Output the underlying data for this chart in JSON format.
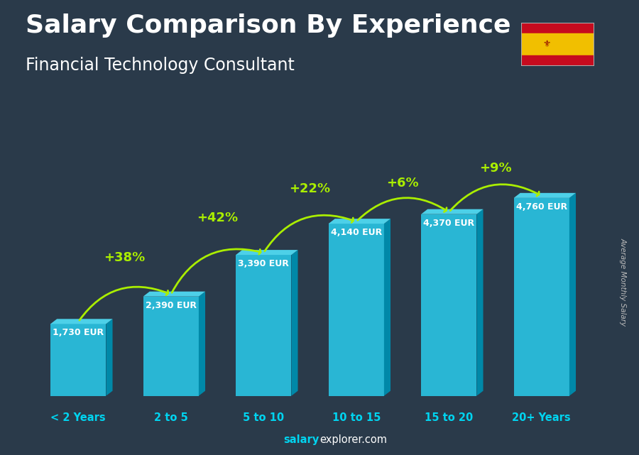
{
  "title": "Salary Comparison By Experience",
  "subtitle": "Financial Technology Consultant",
  "categories": [
    "< 2 Years",
    "2 to 5",
    "5 to 10",
    "10 to 15",
    "15 to 20",
    "20+ Years"
  ],
  "values": [
    1730,
    2390,
    3390,
    4140,
    4370,
    4760
  ],
  "labels": [
    "1,730 EUR",
    "2,390 EUR",
    "3,390 EUR",
    "4,140 EUR",
    "4,370 EUR",
    "4,760 EUR"
  ],
  "pct_changes": [
    "+38%",
    "+42%",
    "+22%",
    "+6%",
    "+9%"
  ],
  "color_front": "#29b6d4",
  "color_top": "#4dd0e8",
  "color_side": "#0088a8",
  "bg_color": "#2a3a4a",
  "title_color": "#ffffff",
  "subtitle_color": "#ffffff",
  "label_color": "#ffffff",
  "pct_color": "#aaee00",
  "arrow_color": "#aaee00",
  "xcat_color": "#00d4f0",
  "footer_salary_color": "#00d4f0",
  "footer_explorer_color": "#ffffff",
  "ylabel_text": "Average Monthly Salary",
  "title_fontsize": 26,
  "subtitle_fontsize": 17,
  "bar_width": 0.6,
  "ylim_max": 5800
}
